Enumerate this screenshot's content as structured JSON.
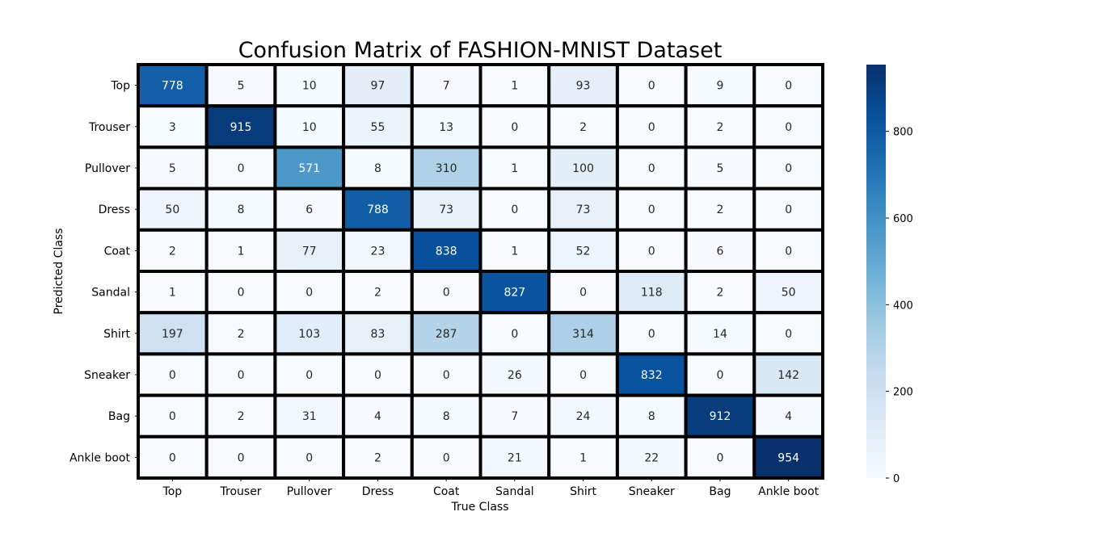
{
  "chart_data": {
    "type": "heatmap",
    "title": "Confusion Matrix of FASHION-MNIST Dataset",
    "xlabel": "True Class",
    "ylabel": "Predicted Class",
    "x_categories": [
      "Top",
      "Trouser",
      "Pullover",
      "Dress",
      "Coat",
      "Sandal",
      "Shirt",
      "Sneaker",
      "Bag",
      "Ankle boot"
    ],
    "y_categories": [
      "Top",
      "Trouser",
      "Pullover",
      "Dress",
      "Coat",
      "Sandal",
      "Shirt",
      "Sneaker",
      "Bag",
      "Ankle boot"
    ],
    "values": [
      [
        778,
        5,
        10,
        97,
        7,
        1,
        93,
        0,
        9,
        0
      ],
      [
        3,
        915,
        10,
        55,
        13,
        0,
        2,
        0,
        2,
        0
      ],
      [
        5,
        0,
        571,
        8,
        310,
        1,
        100,
        0,
        5,
        0
      ],
      [
        50,
        8,
        6,
        788,
        73,
        0,
        73,
        0,
        2,
        0
      ],
      [
        2,
        1,
        77,
        23,
        838,
        1,
        52,
        0,
        6,
        0
      ],
      [
        1,
        0,
        0,
        2,
        0,
        827,
        0,
        118,
        2,
        50
      ],
      [
        197,
        2,
        103,
        83,
        287,
        0,
        314,
        0,
        14,
        0
      ],
      [
        0,
        0,
        0,
        0,
        0,
        26,
        0,
        832,
        0,
        142
      ],
      [
        0,
        2,
        31,
        4,
        8,
        7,
        24,
        8,
        912,
        4
      ],
      [
        0,
        0,
        0,
        2,
        0,
        21,
        1,
        22,
        0,
        954
      ]
    ],
    "colormap": "Blues",
    "colorbar": {
      "min": 0,
      "max": 954,
      "ticks": [
        0,
        200,
        400,
        600,
        800
      ]
    },
    "cell_border_color": "#000000"
  }
}
